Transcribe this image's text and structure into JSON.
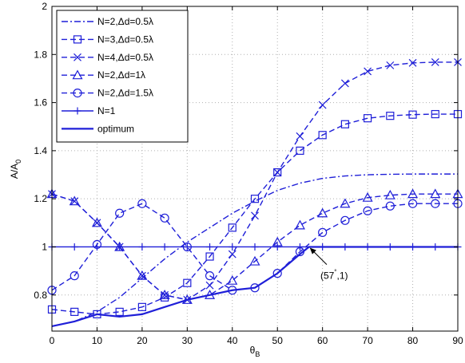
{
  "chart_data": {
    "type": "line",
    "xlabel": "θ",
    "xlabel_sub": "B",
    "ylabel": "A/A",
    "ylabel_sub": "0",
    "xlim": [
      0,
      90
    ],
    "ylim": [
      0.65,
      2.0
    ],
    "xticks": [
      0,
      10,
      20,
      30,
      40,
      50,
      60,
      70,
      80,
      90
    ],
    "yticks": [
      0.8,
      1,
      1.2,
      1.4,
      1.6,
      1.8,
      2
    ],
    "ytick_labels": [
      "0.8",
      "1",
      "1.2",
      "1.4",
      "1.6",
      "1.8",
      "2"
    ],
    "grid": "dotted",
    "legend_position": "top-left",
    "series": [
      {
        "name": "N=2,Δd=0.5λ",
        "style": "dashdot",
        "marker": "none",
        "x": [
          0,
          5,
          10,
          15,
          20,
          25,
          30,
          35,
          40,
          45,
          50,
          55,
          60,
          65,
          70,
          75,
          80,
          85,
          90
        ],
        "y": [
          0.67,
          0.69,
          0.73,
          0.79,
          0.87,
          0.95,
          1.02,
          1.08,
          1.14,
          1.19,
          1.235,
          1.265,
          1.285,
          1.295,
          1.3,
          1.302,
          1.303,
          1.303,
          1.303
        ]
      },
      {
        "name": "N=3,Δd=0.5λ",
        "style": "dashed",
        "marker": "square",
        "x": [
          0,
          5,
          10,
          15,
          20,
          25,
          30,
          35,
          40,
          45,
          50,
          55,
          60,
          65,
          70,
          75,
          80,
          85,
          90
        ],
        "y": [
          0.74,
          0.73,
          0.72,
          0.73,
          0.75,
          0.79,
          0.85,
          0.96,
          1.08,
          1.2,
          1.31,
          1.4,
          1.465,
          1.51,
          1.535,
          1.545,
          1.55,
          1.552,
          1.552
        ]
      },
      {
        "name": "N=4,Δd=0.5λ",
        "style": "dashed",
        "marker": "x",
        "x": [
          0,
          5,
          10,
          15,
          20,
          25,
          30,
          35,
          40,
          45,
          50,
          55,
          60,
          65,
          70,
          75,
          80,
          85,
          90
        ],
        "y": [
          1.22,
          1.19,
          1.1,
          1.0,
          0.88,
          0.8,
          0.78,
          0.84,
          0.97,
          1.13,
          1.31,
          1.46,
          1.59,
          1.68,
          1.73,
          1.755,
          1.765,
          1.768,
          1.768
        ]
      },
      {
        "name": "N=2,Δd=1λ",
        "style": "dashed",
        "marker": "triangle",
        "x": [
          0,
          5,
          10,
          15,
          20,
          25,
          30,
          35,
          40,
          45,
          50,
          55,
          60,
          65,
          70,
          75,
          80,
          85,
          90
        ],
        "y": [
          1.22,
          1.19,
          1.1,
          1.0,
          0.88,
          0.8,
          0.78,
          0.8,
          0.86,
          0.94,
          1.02,
          1.09,
          1.14,
          1.18,
          1.205,
          1.215,
          1.22,
          1.22,
          1.22
        ]
      },
      {
        "name": "N=2,Δd=1.5λ",
        "style": "dashed",
        "marker": "circle",
        "x": [
          0,
          5,
          10,
          15,
          20,
          25,
          30,
          35,
          40,
          45,
          50,
          55,
          60,
          65,
          70,
          75,
          80,
          85,
          90
        ],
        "y": [
          0.82,
          0.88,
          1.01,
          1.14,
          1.18,
          1.12,
          1.0,
          0.88,
          0.82,
          0.83,
          0.89,
          0.98,
          1.06,
          1.11,
          1.15,
          1.17,
          1.18,
          1.18,
          1.18
        ]
      },
      {
        "name": "N=1",
        "style": "solid",
        "marker": "plus",
        "x": [
          0,
          5,
          10,
          15,
          20,
          25,
          30,
          35,
          40,
          45,
          50,
          55,
          60,
          65,
          70,
          75,
          80,
          85,
          90
        ],
        "y": [
          1,
          1,
          1,
          1,
          1,
          1,
          1,
          1,
          1,
          1,
          1,
          1,
          1,
          1,
          1,
          1,
          1,
          1,
          1
        ]
      },
      {
        "name": "optimum",
        "style": "solid-thick",
        "marker": "none",
        "x": [
          0,
          5,
          10,
          15,
          20,
          25,
          30,
          35,
          40,
          45,
          50,
          55,
          57,
          60,
          65,
          70,
          75,
          80,
          85,
          90
        ],
        "y": [
          0.67,
          0.69,
          0.72,
          0.71,
          0.72,
          0.75,
          0.78,
          0.8,
          0.82,
          0.83,
          0.89,
          0.97,
          1.0,
          1.0,
          1.0,
          1.0,
          1.0,
          1.0,
          1.0,
          1.0
        ]
      }
    ],
    "annotation": {
      "text": "(57",
      "sup": "°",
      "text_after": ",1)",
      "point": [
        57,
        1
      ],
      "label_at": [
        62,
        0.88
      ]
    }
  },
  "colors": {
    "line": "#1f1fd8",
    "axis": "#000000",
    "grid": "#b0b0b0"
  }
}
